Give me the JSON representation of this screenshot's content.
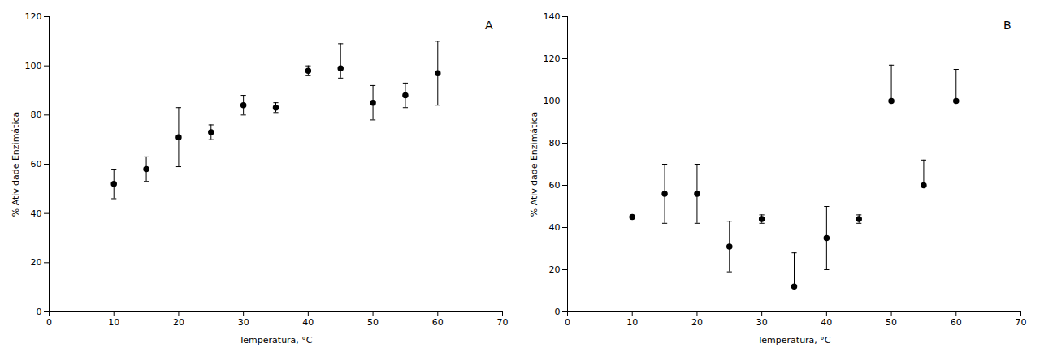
{
  "chart_data": [
    {
      "type": "scatter",
      "annotation": "A",
      "x": [
        10,
        15,
        20,
        25,
        30,
        35,
        40,
        45,
        50,
        55,
        60
      ],
      "values": [
        52,
        58,
        71,
        73,
        84,
        83,
        98,
        99,
        85,
        88,
        97
      ],
      "yerr_lo": [
        6,
        5,
        12,
        3,
        4,
        2,
        2,
        4,
        7,
        5,
        13
      ],
      "yerr_hi": [
        6,
        5,
        12,
        3,
        4,
        2,
        2,
        10,
        7,
        5,
        13
      ],
      "xlabel": "Temperatura, °C",
      "ylabel": "% Atividade Enzimática",
      "xlim": [
        0,
        70
      ],
      "ylim": [
        0,
        120
      ],
      "xticks": [
        0,
        10,
        20,
        30,
        40,
        50,
        60,
        70
      ],
      "yticks": [
        0,
        20,
        40,
        60,
        80,
        100,
        120
      ],
      "color": "#000000",
      "marker": "o",
      "grid": false
    },
    {
      "type": "scatter",
      "annotation": "B",
      "x": [
        10,
        15,
        20,
        25,
        30,
        35,
        40,
        45,
        50,
        55,
        60
      ],
      "values": [
        45,
        56,
        56,
        31,
        44,
        12,
        35,
        44,
        100,
        60,
        100
      ],
      "yerr_lo": [
        0,
        14,
        14,
        12,
        2,
        0,
        15,
        2,
        0,
        0,
        0
      ],
      "yerr_hi": [
        0,
        14,
        14,
        12,
        2,
        16,
        15,
        2,
        17,
        12,
        15
      ],
      "xlabel": "Temperatura, °C",
      "ylabel": "% Atividade Enzimática",
      "xlim": [
        0,
        70
      ],
      "ylim": [
        0,
        140
      ],
      "xticks": [
        0,
        10,
        20,
        30,
        40,
        50,
        60,
        70
      ],
      "yticks": [
        0,
        20,
        40,
        60,
        80,
        100,
        120,
        140
      ],
      "color": "#000000",
      "marker": "o",
      "grid": false
    }
  ]
}
